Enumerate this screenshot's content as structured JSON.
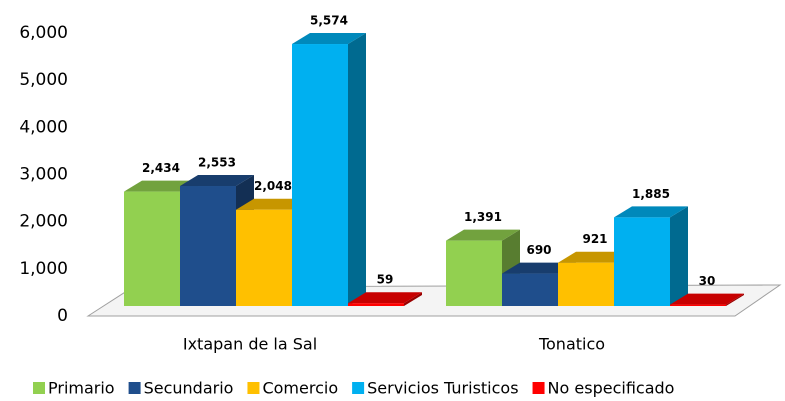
{
  "chart_data": {
    "type": "bar3d",
    "categories": [
      "Ixtapan de la Sal",
      "Tonatico"
    ],
    "series": [
      {
        "name": "Primario",
        "color": "#92d050",
        "values": [
          2434,
          1391
        ],
        "value_labels": [
          "2,434",
          "1,391"
        ]
      },
      {
        "name": "Secundario",
        "color": "#1f4e8c",
        "values": [
          2553,
          690
        ],
        "value_labels": [
          "2,553",
          "690"
        ]
      },
      {
        "name": "Comercio",
        "color": "#ffc000",
        "values": [
          2048,
          921
        ],
        "value_labels": [
          "2,048",
          "921"
        ]
      },
      {
        "name": "Servicios Turisticos",
        "color": "#00b0f0",
        "values": [
          5574,
          1885
        ],
        "value_labels": [
          "5,574",
          "1,885"
        ]
      },
      {
        "name": "No especificado",
        "color": "#ff0000",
        "values": [
          59,
          30
        ],
        "value_labels": [
          "59",
          "30"
        ]
      }
    ],
    "ylim": [
      0,
      6000
    ],
    "yticks": [
      0,
      {
        "value": 1000,
        "label": "1,000"
      },
      {
        "value": 2000,
        "label": "2,000"
      },
      {
        "value": 3000,
        "label": "3,000"
      },
      {
        "value": 4000,
        "label": "4,000"
      },
      {
        "value": 5000,
        "label": "5,000"
      },
      {
        "value": 6000,
        "label": "6,000"
      }
    ],
    "legend": "bottom"
  }
}
